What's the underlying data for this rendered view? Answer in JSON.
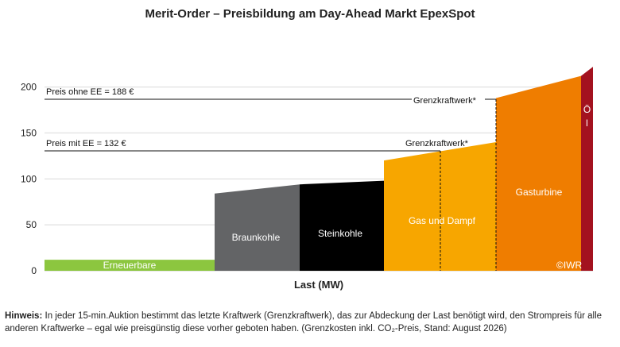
{
  "title": "Merit-Order – Preisbildung am Day-Ahead Markt EpexSpot",
  "note": {
    "label": "Hinweis:",
    "text": "In jeder 15-min.Auktion bestimmt das letzte Kraftwerk (Grenzkraftwerk), das zur Abdeckung der Last benötigt wird, den Strompreis für alle anderen Kraftwerke – egal wie preisgünstig diese vorher geboten haben. (Grenzkosten inkl. CO₂-Preis, Stand: August 2026)"
  },
  "chart_data": {
    "type": "area",
    "title": "Merit-Order – Preisbildung am Day-Ahead Markt EpexSpot",
    "xlabel": "Last (MW)",
    "ylabel": "",
    "ylim": [
      0,
      220
    ],
    "yticks": [
      0,
      50,
      100,
      150,
      200
    ],
    "grid": true,
    "copyright": "©IWR",
    "blocks": [
      {
        "name": "Erneuerbare",
        "color": "#8cc63f",
        "label_color": "#ffffff",
        "price_start": 12,
        "price_end": 12
      },
      {
        "name": "Braunkohle",
        "color": "#636466",
        "label_color": "#ffffff",
        "price_start": 84,
        "price_end": 94
      },
      {
        "name": "Steinkohle",
        "color": "#000000",
        "label_color": "#ffffff",
        "price_start": 94,
        "price_end": 98
      },
      {
        "name": "Gas und Dampf",
        "color": "#f7a600",
        "label_color": "#ffffff",
        "price_start": 120,
        "price_end": 140
      },
      {
        "name": "Gasturbine",
        "color": "#ef7d00",
        "label_color": "#ffffff",
        "price_start": 188,
        "price_end": 212
      },
      {
        "name": "Öl",
        "color": "#a3121f",
        "label_color": "#ffffff",
        "price_start": 212,
        "price_end": 222
      }
    ],
    "price_lines": [
      {
        "label": "Preis ohne EE = 188 €",
        "value": 188,
        "marginal_label": "Grenzkraftwerk*"
      },
      {
        "label": "Preis mit EE = 132 €",
        "value": 132,
        "marginal_label": "Grenzkraftwerk*"
      }
    ]
  }
}
